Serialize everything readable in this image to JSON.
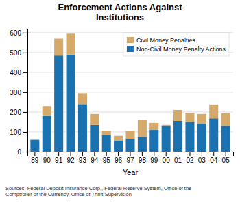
{
  "chart_data": {
    "type": "bar",
    "stacked": true,
    "title": "Enforcement Actions Against\nInstitutions",
    "xlabel": "Year",
    "annotations": [
      "Sources: Federal Deposit Insurance Corp., Federal Reserve System, Office of the\nComptroller of the Currency, Office of Thrift Supervision"
    ],
    "categories": [
      "89",
      "90",
      "91",
      "92",
      "93",
      "94",
      "95",
      "96",
      "97",
      "98",
      "99",
      "00",
      "01",
      "02",
      "03",
      "04",
      "05"
    ],
    "series": [
      {
        "name": "Non-Civil Money Penalty Actions",
        "color": "#1a72b0",
        "values": [
          60,
          180,
          485,
          490,
          240,
          135,
          85,
          55,
          65,
          75,
          110,
          130,
          155,
          150,
          143,
          168,
          130
        ]
      },
      {
        "name": "Civil Money Penalties",
        "color": "#d4a96a",
        "values": [
          0,
          50,
          85,
          105,
          55,
          55,
          20,
          25,
          40,
          85,
          35,
          5,
          55,
          45,
          47,
          70,
          63
        ]
      }
    ],
    "ylim": [
      0,
      620
    ],
    "yticks": [
      0,
      100,
      200,
      300,
      400,
      500,
      600
    ],
    "grid": true,
    "legend": "upper right"
  }
}
